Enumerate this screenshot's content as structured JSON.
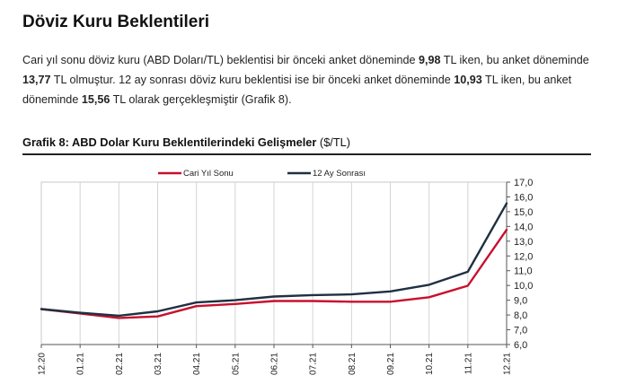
{
  "heading": "Döviz Kuru Beklentileri",
  "paragraph": {
    "t1": "Cari yıl sonu döviz kuru (ABD Doları/TL) beklentisi bir önceki anket döneminde ",
    "v1": "9,98",
    "t2": " TL iken, bu anket döneminde ",
    "v2": "13,77",
    "t3": " TL olmuştur. 12 ay sonrası döviz kuru beklentisi ise bir önceki anket döneminde ",
    "v3": "10,93",
    "t4": " TL iken, bu anket döneminde ",
    "v4": "15,56",
    "t5": " TL olarak gerçekleşmiştir (Grafik 8)."
  },
  "chart_title": {
    "bold": "Grafik 8: ABD Dolar Kuru Beklentilerindeki Gelişmeler",
    "unit": " ($/TL)"
  },
  "chart_data": {
    "type": "line",
    "categories": [
      "12.20",
      "01.21",
      "02.21",
      "03.21",
      "04.21",
      "05.21",
      "06.21",
      "07.21",
      "08.21",
      "09.21",
      "10.21",
      "11.21",
      "12.21"
    ],
    "series": [
      {
        "name": "Cari Yıl Sonu",
        "color": "#c8102e",
        "values": [
          8.4,
          8.1,
          7.8,
          7.9,
          8.6,
          8.75,
          8.95,
          8.95,
          8.9,
          8.9,
          9.2,
          9.98,
          13.77
        ]
      },
      {
        "name": "12 Ay Sonrası",
        "color": "#1f3041",
        "values": [
          8.4,
          8.15,
          7.95,
          8.25,
          8.85,
          9.0,
          9.25,
          9.35,
          9.4,
          9.6,
          10.05,
          10.93,
          15.56
        ]
      }
    ],
    "ylim": [
      6.0,
      17.0
    ],
    "yticks": [
      "6,0",
      "7,0",
      "8,0",
      "9,0",
      "10,0",
      "11,0",
      "12,0",
      "13,0",
      "14,0",
      "15,0",
      "16,0",
      "17,0"
    ],
    "y_axis_side": "right",
    "grid": "vertical",
    "legend_position": "top"
  }
}
